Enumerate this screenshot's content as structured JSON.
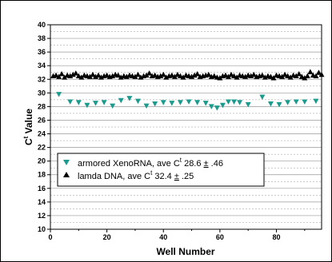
{
  "chart_data": {
    "type": "scatter",
    "xlabel": "Well Number",
    "ylabel_main": "C",
    "ylabel_sup": "t",
    "ylabel_tail": " Value",
    "xlim": [
      0,
      96
    ],
    "ylim": [
      10,
      40
    ],
    "x_ticks": [
      0,
      20,
      40,
      60,
      80
    ],
    "y_ticks": [
      10,
      12,
      14,
      16,
      18,
      20,
      22,
      24,
      26,
      28,
      30,
      32,
      34,
      36,
      38,
      40
    ],
    "grid": "horizontal",
    "legend_position": "lower-left",
    "series": [
      {
        "legend_prefix": "armored XenoRNA, ave C",
        "legend_sup": "t",
        "legend_suffix": " 28.6 ",
        "legend_pm": "±",
        "legend_value": " .46",
        "marker": "triangle-down",
        "color": "#1a9b8e",
        "points": [
          [
            3,
            29.8
          ],
          [
            7,
            28.7
          ],
          [
            10,
            28.6
          ],
          [
            13,
            28.2
          ],
          [
            16,
            28.5
          ],
          [
            19,
            28.6
          ],
          [
            22,
            28.1
          ],
          [
            25,
            28.9
          ],
          [
            28,
            29.2
          ],
          [
            31,
            28.8
          ],
          [
            34,
            28.1
          ],
          [
            37,
            28.4
          ],
          [
            40,
            28.6
          ],
          [
            43,
            28.5
          ],
          [
            46,
            28.6
          ],
          [
            49,
            28.7
          ],
          [
            52,
            28.6
          ],
          [
            55,
            28.5
          ],
          [
            57,
            28.0
          ],
          [
            59,
            27.8
          ],
          [
            61,
            28.2
          ],
          [
            63,
            28.7
          ],
          [
            65,
            28.7
          ],
          [
            67,
            28.6
          ],
          [
            70,
            28.3
          ],
          [
            75,
            29.4
          ],
          [
            78,
            28.4
          ],
          [
            81,
            28.3
          ],
          [
            84,
            28.6
          ],
          [
            87,
            28.7
          ],
          [
            90,
            28.7
          ],
          [
            94,
            28.8
          ]
        ]
      },
      {
        "legend_prefix": "lamda DNA, ave C",
        "legend_sup": "t",
        "legend_suffix": " 32.4 ",
        "legend_pm": "±",
        "legend_value": " .25",
        "marker": "triangle-up",
        "color": "#000000",
        "points": [
          [
            1,
            32.5
          ],
          [
            2,
            32.6
          ],
          [
            3,
            32.4
          ],
          [
            4,
            32.8
          ],
          [
            5,
            32.3
          ],
          [
            6,
            32.6
          ],
          [
            7,
            32.5
          ],
          [
            8,
            32.7
          ],
          [
            9,
            32.9
          ],
          [
            10,
            32.5
          ],
          [
            11,
            32.3
          ],
          [
            12,
            32.6
          ],
          [
            13,
            32.5
          ],
          [
            14,
            32.4
          ],
          [
            15,
            32.7
          ],
          [
            16,
            32.4
          ],
          [
            17,
            32.6
          ],
          [
            18,
            32.3
          ],
          [
            19,
            32.5
          ],
          [
            20,
            32.6
          ],
          [
            21,
            32.4
          ],
          [
            22,
            32.5
          ],
          [
            23,
            32.7
          ],
          [
            24,
            32.6
          ],
          [
            25,
            32.3
          ],
          [
            26,
            32.5
          ],
          [
            27,
            32.4
          ],
          [
            28,
            32.6
          ],
          [
            29,
            32.5
          ],
          [
            30,
            32.4
          ],
          [
            31,
            32.7
          ],
          [
            32,
            32.3
          ],
          [
            33,
            32.5
          ],
          [
            34,
            32.6
          ],
          [
            35,
            32.9
          ],
          [
            36,
            32.5
          ],
          [
            37,
            32.6
          ],
          [
            38,
            32.4
          ],
          [
            39,
            32.5
          ],
          [
            40,
            32.7
          ],
          [
            41,
            32.3
          ],
          [
            42,
            32.5
          ],
          [
            43,
            32.6
          ],
          [
            44,
            32.4
          ],
          [
            45,
            32.7
          ],
          [
            46,
            32.5
          ],
          [
            47,
            32.3
          ],
          [
            48,
            32.6
          ],
          [
            49,
            32.5
          ],
          [
            50,
            32.4
          ],
          [
            51,
            32.6
          ],
          [
            52,
            32.8
          ],
          [
            53,
            32.4
          ],
          [
            54,
            32.5
          ],
          [
            55,
            32.6
          ],
          [
            56,
            32.7
          ],
          [
            57,
            32.4
          ],
          [
            58,
            32.5
          ],
          [
            59,
            32.3
          ],
          [
            60,
            32.2
          ],
          [
            61,
            32.5
          ],
          [
            62,
            32.6
          ],
          [
            63,
            32.4
          ],
          [
            64,
            32.7
          ],
          [
            65,
            32.5
          ],
          [
            66,
            32.3
          ],
          [
            67,
            32.6
          ],
          [
            68,
            32.5
          ],
          [
            69,
            32.4
          ],
          [
            70,
            32.6
          ],
          [
            71,
            32.5
          ],
          [
            72,
            32.7
          ],
          [
            73,
            32.4
          ],
          [
            74,
            32.5
          ],
          [
            75,
            32.6
          ],
          [
            76,
            32.3
          ],
          [
            77,
            32.5
          ],
          [
            78,
            32.4
          ],
          [
            79,
            32.2
          ],
          [
            80,
            32.6
          ],
          [
            81,
            32.5
          ],
          [
            82,
            32.4
          ],
          [
            83,
            32.7
          ],
          [
            84,
            32.5
          ],
          [
            85,
            32.3
          ],
          [
            86,
            32.6
          ],
          [
            87,
            32.5
          ],
          [
            88,
            32.8
          ],
          [
            89,
            32.4
          ],
          [
            90,
            32.2
          ],
          [
            91,
            32.5
          ],
          [
            92,
            33.1
          ],
          [
            93,
            32.6
          ],
          [
            94,
            32.5
          ],
          [
            95,
            33.0
          ],
          [
            96,
            32.7
          ]
        ]
      }
    ]
  }
}
